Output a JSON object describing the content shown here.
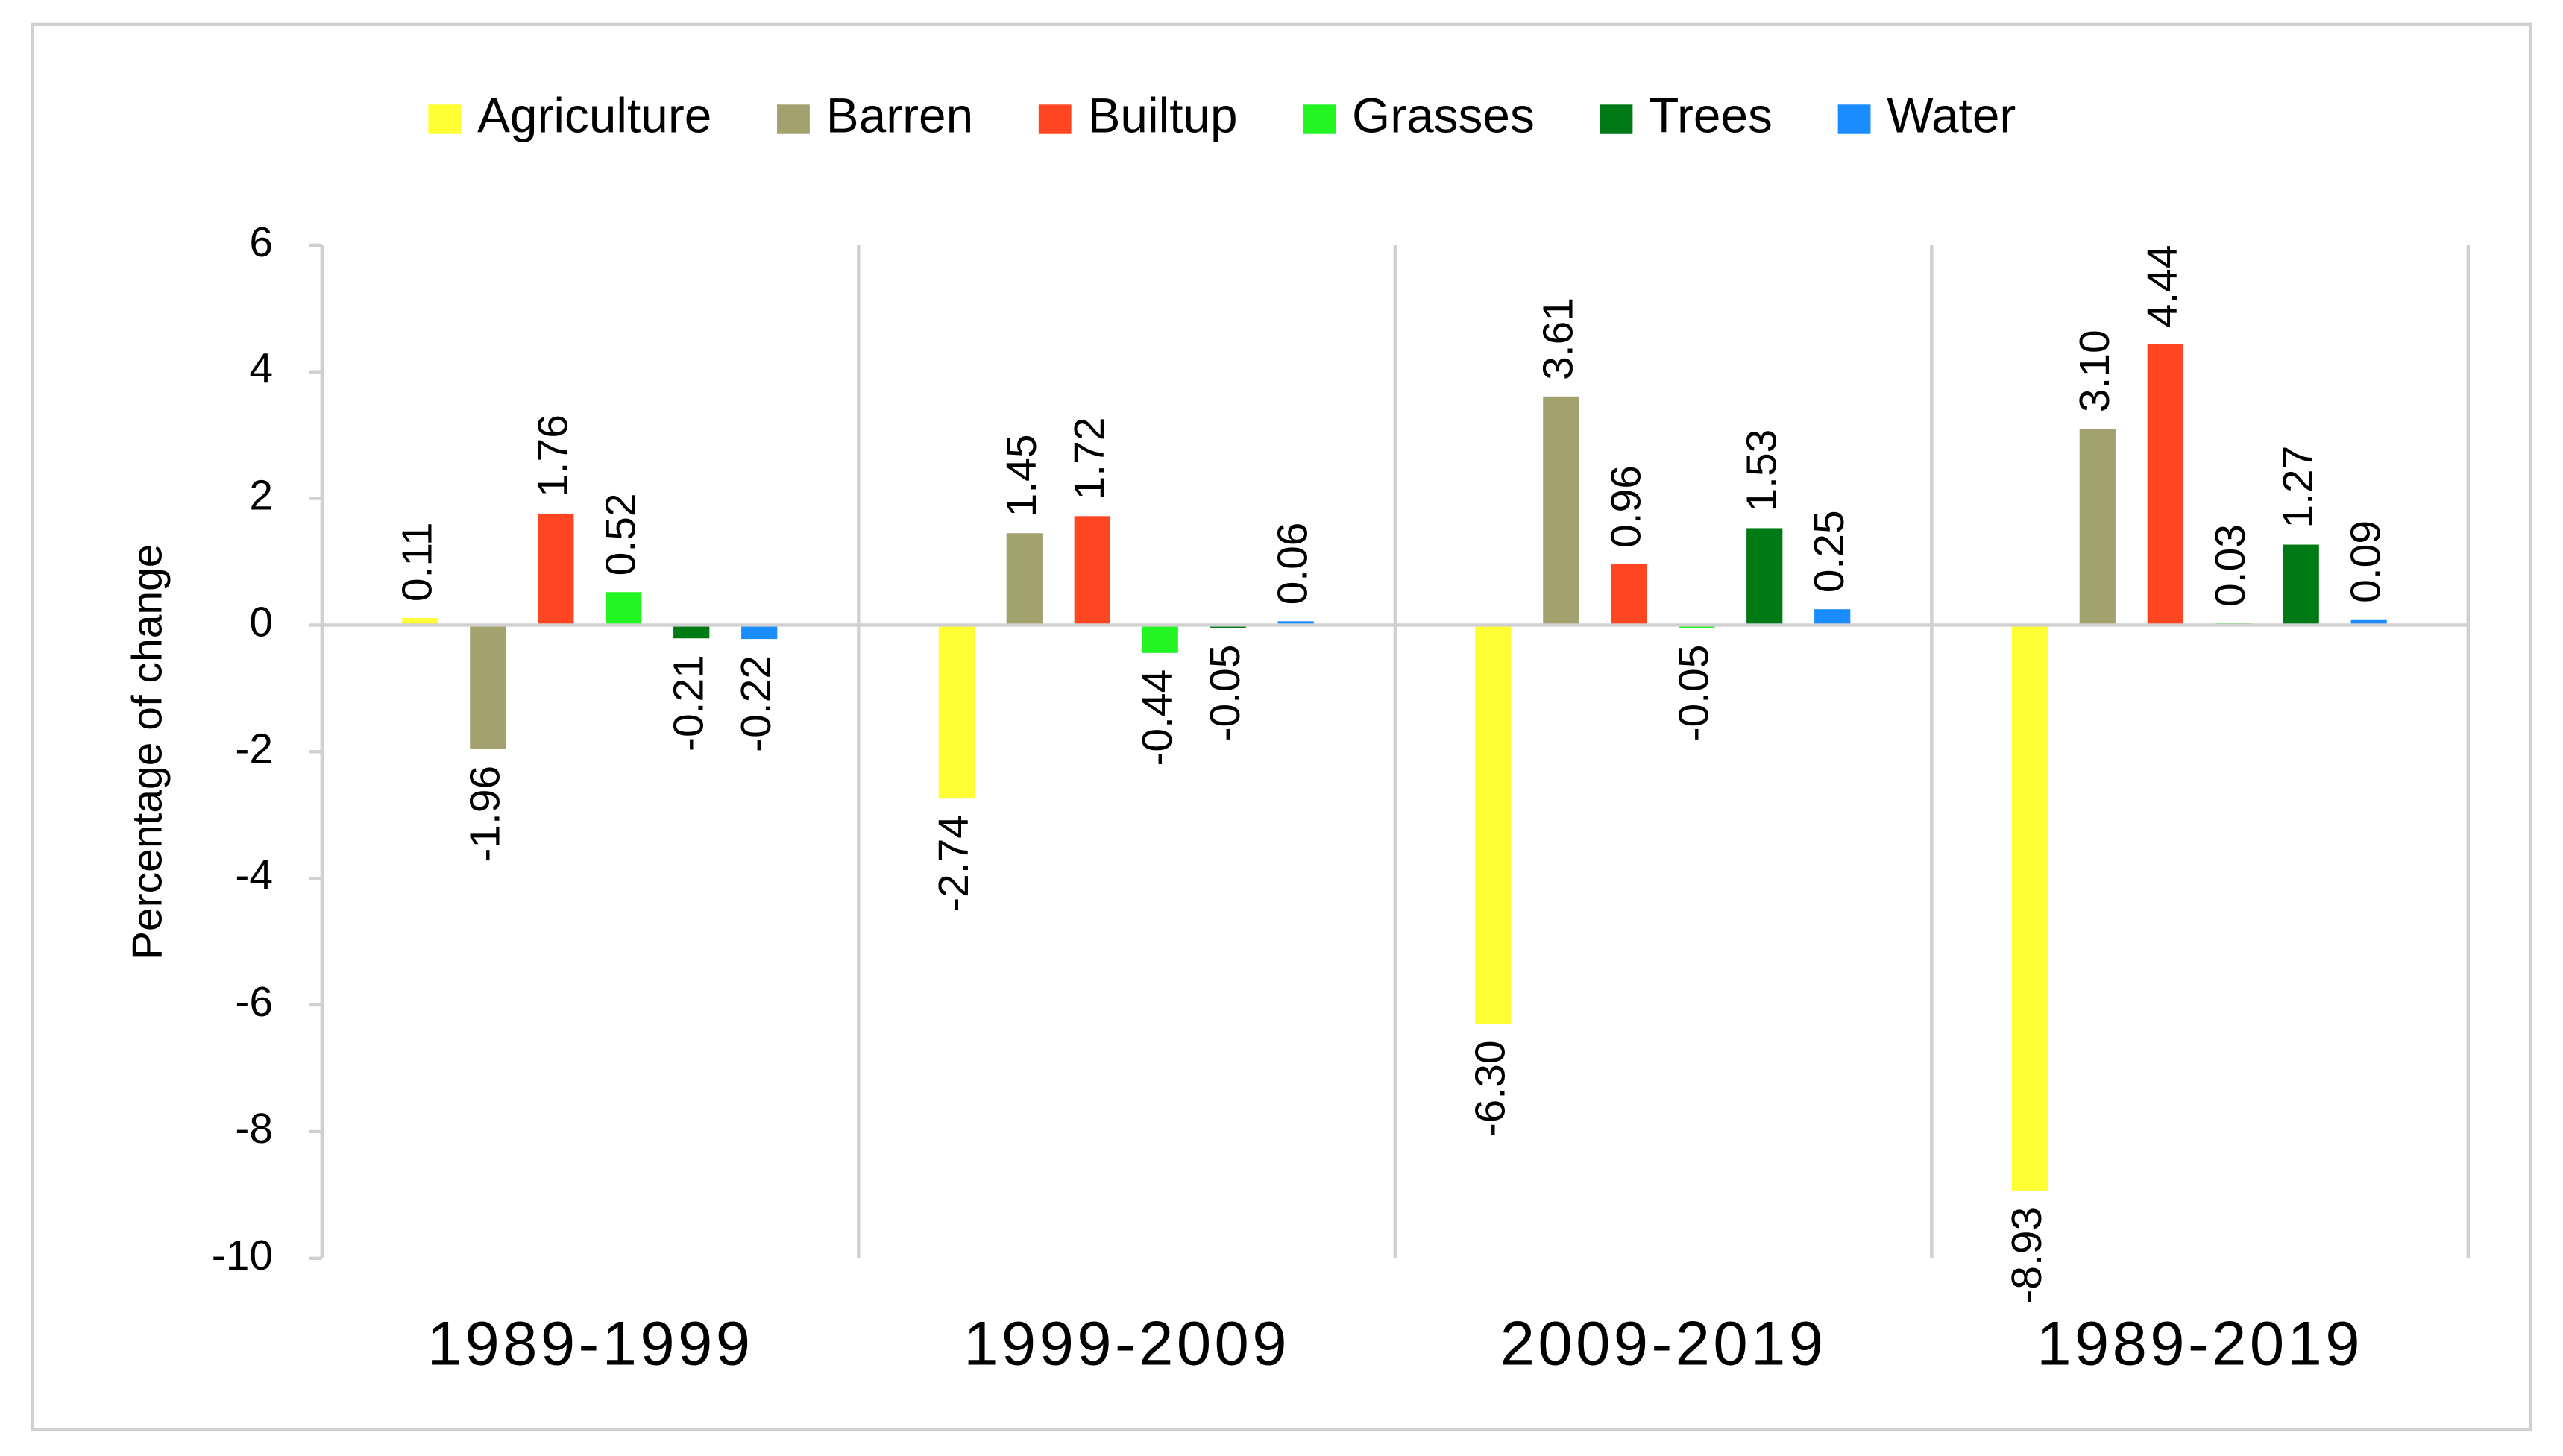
{
  "chart_data": {
    "type": "bar",
    "y_label": "Percentage of change",
    "categories": [
      "1989-1999",
      "1999-2009",
      "2009-2019",
      "1989-2019"
    ],
    "series": [
      {
        "name": "Agriculture",
        "color": "#ffff33",
        "values": [
          0.11,
          -2.74,
          -6.3,
          -8.93
        ],
        "value_labels": [
          "0.11",
          "-2.74",
          "-6.30",
          "-8.93"
        ]
      },
      {
        "name": "Barren",
        "color": "#a1a26e",
        "values": [
          -1.96,
          1.45,
          3.61,
          3.1
        ],
        "value_labels": [
          "-1.96",
          "1.45",
          "3.61",
          "3.10"
        ]
      },
      {
        "name": "Builtup",
        "color": "#ff4522",
        "values": [
          1.76,
          1.72,
          0.96,
          4.44
        ],
        "value_labels": [
          "1.76",
          "1.72",
          "0.96",
          "4.44"
        ]
      },
      {
        "name": "Grasses",
        "color": "#22f522",
        "values": [
          0.52,
          -0.44,
          -0.05,
          0.03
        ],
        "value_labels": [
          "0.52",
          "-0.44",
          "-0.05",
          "0.03"
        ]
      },
      {
        "name": "Trees",
        "color": "#007a14",
        "values": [
          -0.21,
          -0.05,
          1.53,
          1.27
        ],
        "value_labels": [
          "-0.21",
          "-0.05",
          "1.53",
          "1.27"
        ]
      },
      {
        "name": "Water",
        "color": "#1a8cff",
        "values": [
          -0.22,
          0.06,
          0.25,
          0.09
        ],
        "value_labels": [
          "-0.22",
          "0.06",
          "0.25",
          "0.09"
        ]
      }
    ],
    "ylim": [
      -10,
      6
    ],
    "yticks": [
      -10,
      -8,
      -6,
      -4,
      -2,
      0,
      2,
      4,
      6
    ]
  }
}
